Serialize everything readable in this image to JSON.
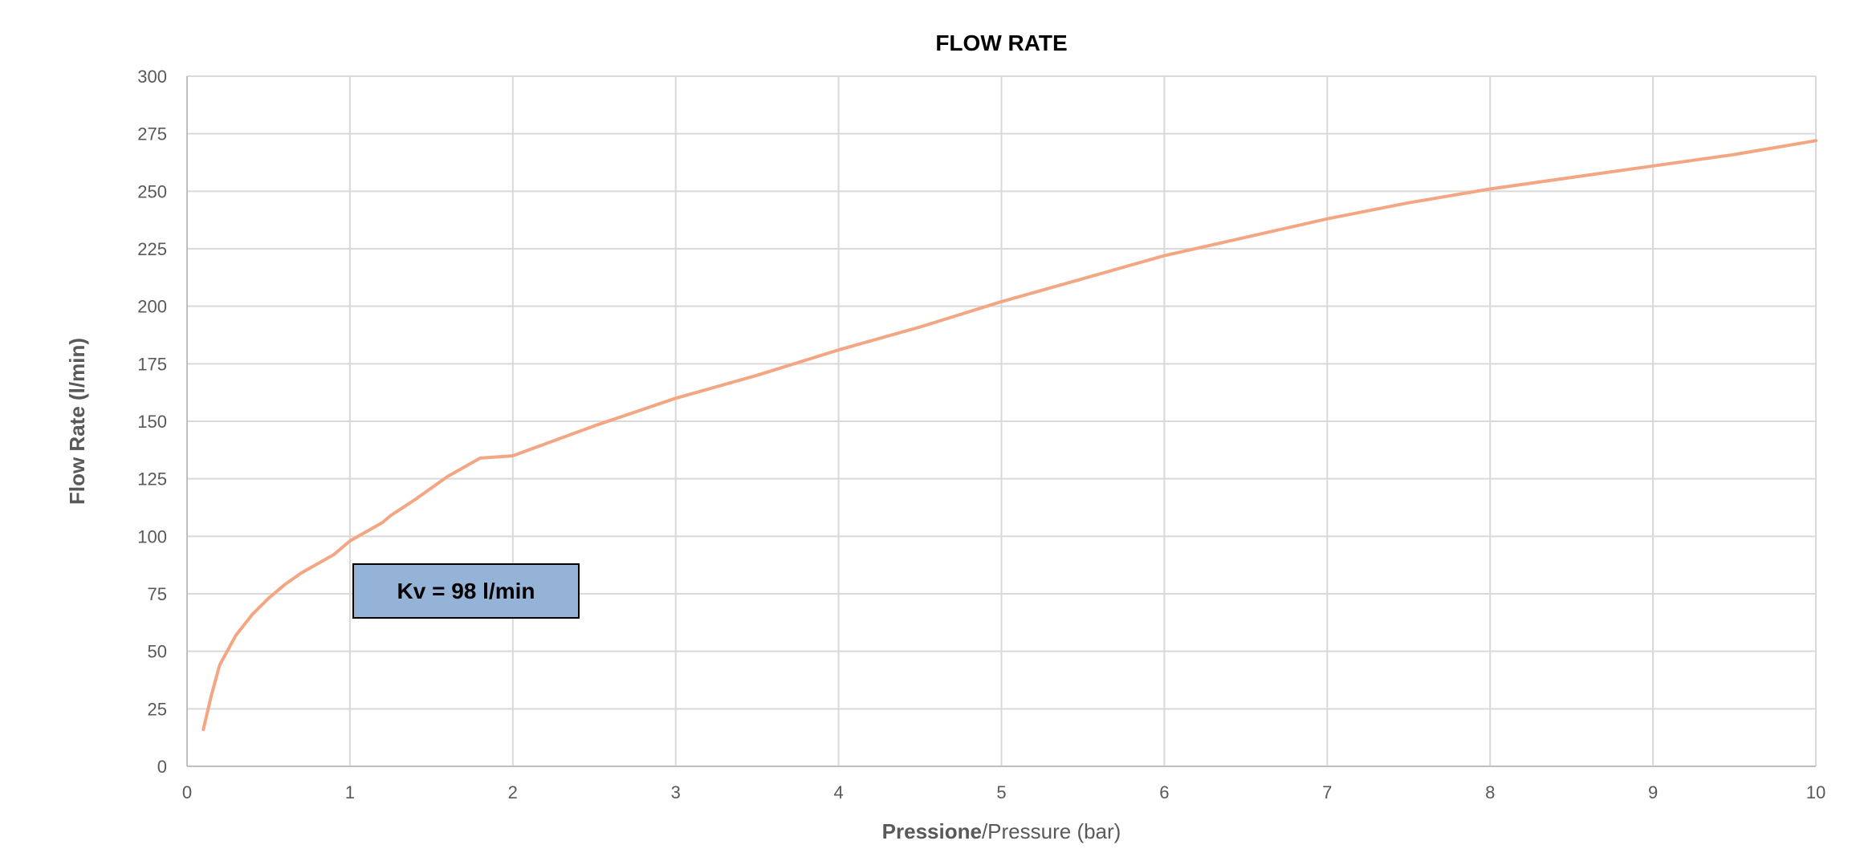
{
  "chart_data": {
    "type": "line",
    "title": "FLOW RATE",
    "xlabel_bold": "Pressione",
    "xlabel_rest": "/Pressure (bar)",
    "ylabel": "Flow Rate (l/min)",
    "xlim": [
      0,
      10
    ],
    "ylim": [
      0,
      300
    ],
    "x_ticks": [
      "0",
      "1",
      "2",
      "3",
      "4",
      "5",
      "6",
      "7",
      "8",
      "9",
      "10"
    ],
    "y_ticks": [
      "0",
      "25",
      "50",
      "75",
      "100",
      "125",
      "150",
      "175",
      "200",
      "225",
      "250",
      "275",
      "300"
    ],
    "grid": true,
    "series": [
      {
        "color": "#f4a582",
        "x": [
          0.1,
          0.15,
          0.2,
          0.3,
          0.4,
          0.5,
          0.6,
          0.7,
          0.8,
          0.9,
          1.0,
          1.2,
          1.25,
          1.4,
          1.6,
          1.8,
          2.0,
          2.5,
          3.0,
          3.5,
          4.0,
          4.5,
          5.0,
          5.5,
          6.0,
          6.5,
          7.0,
          7.5,
          8.0,
          8.5,
          9.0,
          9.5,
          10.0
        ],
        "y": [
          16,
          31,
          44,
          57,
          66,
          73,
          79,
          84,
          88,
          92,
          98,
          106,
          109,
          116,
          126,
          134,
          135,
          148,
          160,
          170,
          181,
          191,
          202,
          212,
          222,
          230,
          238,
          245,
          251,
          256,
          261,
          266,
          272
        ]
      }
    ],
    "annotation": {
      "text": "Kv = 98 l/min",
      "fill": "#95b3d7"
    }
  }
}
